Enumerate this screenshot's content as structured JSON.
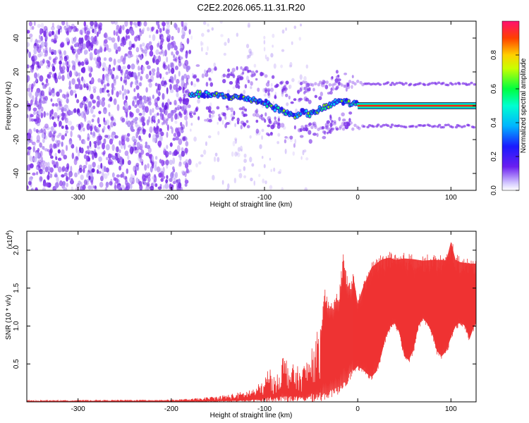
{
  "title": "C2E2.2026.065.11.31.R20",
  "colors": {
    "signal": "#ee3333",
    "noise": "#7a2fe8",
    "trace": "#ee1111",
    "band_dim": "#8a4af0"
  },
  "chart_data": [
    {
      "type": "heatmap",
      "xlabel": "Height of straight line (km)",
      "ylabel": "Frequency (Hz)",
      "xlim": [
        -355,
        127
      ],
      "ylim": [
        -50,
        50
      ],
      "xticks": [
        -300,
        -200,
        -100,
        0,
        100
      ],
      "xtick_labels": [
        "-300",
        "-200",
        "-100",
        "0",
        "100"
      ],
      "yticks": [
        -40,
        -20,
        0,
        20,
        40
      ],
      "ytick_labels": [
        "-40",
        "-20",
        "0",
        "20",
        "40"
      ],
      "colorbar": {
        "label": "Normalized spectral amplitude",
        "range": [
          0.0,
          1.0
        ],
        "ticks": [
          0.0,
          0.2,
          0.4,
          0.6,
          0.8
        ],
        "tick_labels": [
          "0.0",
          "0.2",
          "0.4",
          "0.6",
          "0.8"
        ],
        "colormap": [
          "#cfc6ff",
          "#6b1ff0",
          "#1a1aff",
          "#00c8ff",
          "#00ff70",
          "#d4ff00",
          "#ffcc00",
          "#ff5500",
          "#ff1060"
        ]
      },
      "noise_region_x": [
        -355,
        -180
      ],
      "signal_track": {
        "x": [
          -180,
          -160,
          -140,
          -120,
          -100,
          -90,
          -80,
          -70,
          -60,
          -50,
          -40,
          -30,
          -20,
          -10,
          0,
          20,
          60,
          100,
          127
        ],
        "freq": [
          7,
          6.5,
          5.5,
          4.5,
          2,
          -1,
          -3,
          -6,
          -4,
          -5,
          -2,
          0,
          3,
          2,
          0.5,
          0,
          0,
          0,
          0
        ]
      },
      "sidebands_x": [
        -60,
        127
      ],
      "sidebands_freq": [
        13,
        -12
      ]
    },
    {
      "type": "area",
      "xlabel": "Height of straight line (km)",
      "ylabel": "SNR (10 * v/v)",
      "y_multiplier": "(x10",
      "y_multiplier_exp": "4",
      "y_multiplier_close": ")",
      "xlim": [
        -355,
        127
      ],
      "ylim": [
        0,
        2.25
      ],
      "xticks": [
        -300,
        -200,
        -100,
        0,
        100
      ],
      "xtick_labels": [
        "-300",
        "-200",
        "-100",
        "0",
        "100"
      ],
      "yticks": [
        0.5,
        1.0,
        1.5,
        2.0
      ],
      "ytick_labels": [
        "0.5",
        "1.0",
        "1.5",
        "2.0"
      ],
      "upper_envelope": {
        "x": [
          -355,
          -200,
          -170,
          -150,
          -130,
          -120,
          -110,
          -100,
          -95,
          -90,
          -80,
          -70,
          -60,
          -50,
          -45,
          -40,
          -35,
          -30,
          -25,
          -20,
          -15,
          -10,
          -5,
          0,
          5,
          10,
          15,
          20,
          25,
          30,
          35,
          40,
          50,
          60,
          70,
          80,
          90,
          95,
          100,
          105,
          110,
          120,
          127
        ],
        "y": [
          0.02,
          0.03,
          0.05,
          0.08,
          0.12,
          0.15,
          0.2,
          0.3,
          0.5,
          0.32,
          0.65,
          0.5,
          0.45,
          0.7,
          0.9,
          1.0,
          1.5,
          1.25,
          1.4,
          1.45,
          2.05,
          1.55,
          1.75,
          1.35,
          1.55,
          1.7,
          1.85,
          1.9,
          1.95,
          1.97,
          1.98,
          1.95,
          1.97,
          1.96,
          1.94,
          1.95,
          1.95,
          1.94,
          2.2,
          1.95,
          1.92,
          1.9,
          1.9
        ]
      },
      "lower_envelope": {
        "x": [
          -355,
          -40,
          -30,
          -20,
          -10,
          -5,
          0,
          5,
          10,
          15,
          20,
          25,
          30,
          35,
          40,
          45,
          50,
          55,
          60,
          65,
          70,
          75,
          80,
          85,
          90,
          95,
          100,
          105,
          110,
          115,
          120,
          125,
          127
        ],
        "y": [
          0.0,
          0.0,
          0.05,
          0.1,
          0.25,
          0.35,
          0.42,
          0.38,
          0.32,
          0.28,
          0.35,
          0.55,
          0.8,
          0.95,
          1.0,
          0.85,
          0.55,
          0.5,
          0.65,
          0.95,
          1.05,
          0.98,
          0.85,
          0.62,
          0.55,
          0.62,
          0.8,
          0.95,
          1.0,
          0.95,
          0.78,
          0.95,
          1.0
        ]
      }
    }
  ]
}
